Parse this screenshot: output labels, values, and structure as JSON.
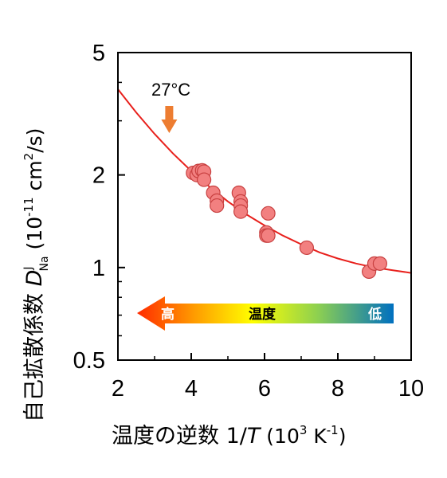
{
  "chart_data": {
    "type": "scatter",
    "xlabel": {
      "main": "温度の逆数 1/",
      "var": "T",
      "unit_open": " (10",
      "unit_exp": "3",
      "unit_mid": " K",
      "unit_exp2": "-1",
      "unit_close": ")"
    },
    "ylabel": {
      "main": "自己拡散係数 ",
      "var": "D",
      "sup": "J",
      "sub": "Na",
      "unit_open": " (10",
      "unit_exp": "-11",
      "unit_mid": " cm",
      "unit_exp2": "2",
      "unit_close": "/s)"
    },
    "xlim": [
      2,
      10
    ],
    "ylim": [
      0.5,
      5
    ],
    "yscale": "log",
    "xticks": [
      "2",
      "4",
      "6",
      "8",
      "10"
    ],
    "yticks": [
      "0.5",
      "1",
      "2",
      "5"
    ],
    "series": [
      {
        "kind": "points",
        "color": "#f28080",
        "x": [
          4.05,
          4.15,
          4.2,
          4.3,
          4.35,
          4.35,
          4.6,
          4.7,
          4.7,
          5.3,
          5.35,
          5.35,
          5.35,
          6.05,
          6.05,
          6.1,
          6.1,
          7.15,
          8.85,
          9.0,
          9.15
        ],
        "y": [
          2.03,
          2.0,
          2.06,
          2.07,
          2.05,
          1.93,
          1.75,
          1.65,
          1.59,
          1.75,
          1.64,
          1.59,
          1.52,
          1.3,
          1.27,
          1.27,
          1.5,
          1.16,
          0.97,
          1.03,
          1.03
        ]
      },
      {
        "kind": "line",
        "color": "#e8201c",
        "x": [
          2.0,
          2.5,
          3.0,
          3.5,
          4.0,
          4.5,
          5.0,
          5.5,
          6.0,
          6.5,
          7.0,
          7.5,
          8.0,
          8.5,
          9.0,
          9.5,
          10.0
        ],
        "y": [
          3.8,
          3.19,
          2.72,
          2.35,
          2.06,
          1.83,
          1.64,
          1.49,
          1.37,
          1.27,
          1.19,
          1.12,
          1.07,
          1.03,
          1.0,
          0.98,
          0.96
        ]
      }
    ],
    "annotations": {
      "temp_label": "27°C",
      "temp_marker_x": 3.4,
      "temp_marker_color": "#ed7d31",
      "arrow_labels": {
        "left": "高",
        "middle": "温度",
        "right": "低"
      }
    }
  }
}
